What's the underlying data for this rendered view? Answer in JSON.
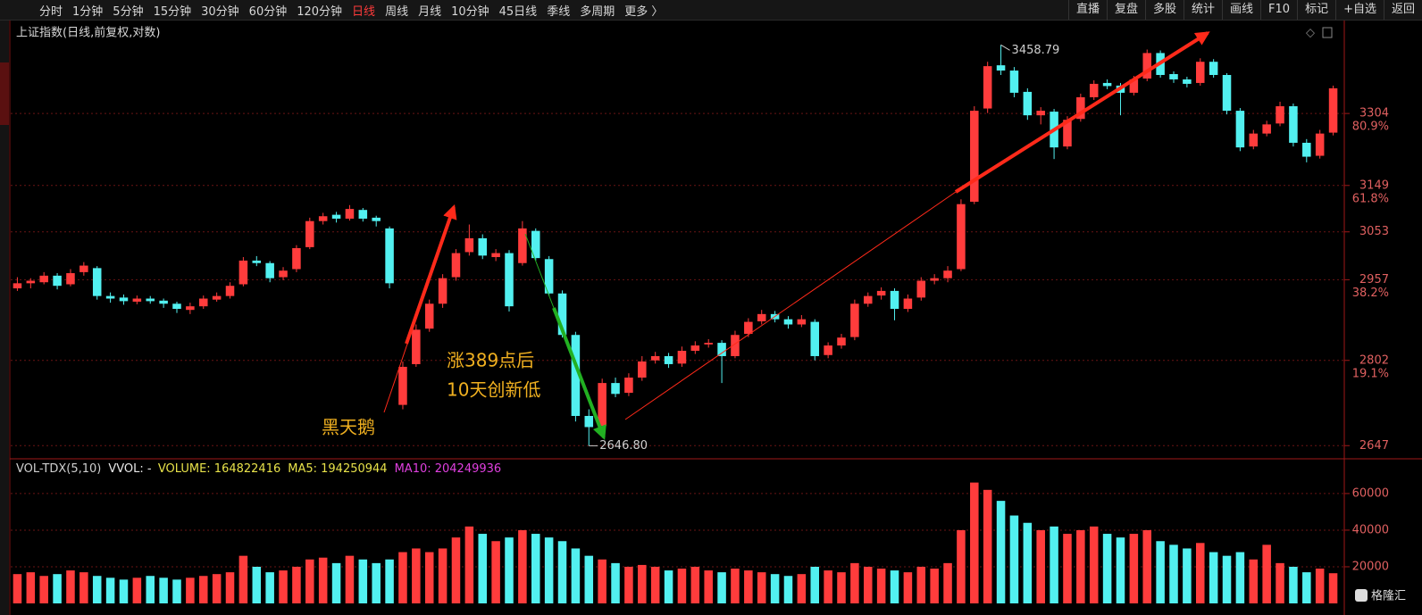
{
  "toolbar": {
    "left": [
      "分时",
      "1分钟",
      "5分钟",
      "15分钟",
      "30分钟",
      "60分钟",
      "120分钟",
      "日线",
      "周线",
      "月线",
      "10分钟",
      "45日线",
      "季线",
      "多周期",
      "更多 〉"
    ],
    "right": [
      "直播",
      "复盘",
      "多股",
      "统计",
      "画线",
      "F10",
      "标记",
      "+自选",
      "返回"
    ],
    "active": "日线"
  },
  "chart_data": {
    "type": "candlestick",
    "title": "上证指数(日线,前复权,对数)",
    "log_scale": true,
    "grid": true,
    "ylim": [
      2627,
      3505
    ],
    "yticks": [
      2647,
      2802,
      2957,
      3053,
      3149,
      3304
    ],
    "fib_labels": [
      {
        "value": 2802,
        "label": "19.1%"
      },
      {
        "value": 2957,
        "label": "38.2%"
      },
      {
        "value": 3149,
        "label": "61.8%"
      },
      {
        "value": 3304,
        "label": "80.9%"
      }
    ],
    "up_color": "#ff3c3c",
    "down_color": "#52f0f0",
    "high_label": "3458.79",
    "low_label": "2646.80",
    "annotations": [
      "黑天鹅",
      "涨389点后",
      "10天创新低"
    ],
    "candles": [
      [
        2940,
        2962,
        2935,
        2950
      ],
      [
        2950,
        2960,
        2940,
        2955
      ],
      [
        2952,
        2972,
        2948,
        2965
      ],
      [
        2965,
        2970,
        2938,
        2945
      ],
      [
        2948,
        2978,
        2944,
        2970
      ],
      [
        2972,
        2992,
        2965,
        2985
      ],
      [
        2980,
        2984,
        2918,
        2925
      ],
      [
        2925,
        2932,
        2912,
        2920
      ],
      [
        2922,
        2928,
        2908,
        2915
      ],
      [
        2914,
        2926,
        2909,
        2920
      ],
      [
        2920,
        2925,
        2910,
        2915
      ],
      [
        2916,
        2920,
        2902,
        2910
      ],
      [
        2910,
        2914,
        2892,
        2900
      ],
      [
        2898,
        2912,
        2890,
        2905
      ],
      [
        2905,
        2926,
        2900,
        2920
      ],
      [
        2918,
        2932,
        2914,
        2925
      ],
      [
        2925,
        2952,
        2920,
        2945
      ],
      [
        2948,
        3002,
        2944,
        2995
      ],
      [
        2995,
        3004,
        2984,
        2990
      ],
      [
        2990,
        2994,
        2952,
        2960
      ],
      [
        2962,
        2982,
        2956,
        2975
      ],
      [
        2978,
        3026,
        2972,
        3020
      ],
      [
        3022,
        3082,
        3018,
        3075
      ],
      [
        3075,
        3092,
        3068,
        3085
      ],
      [
        3088,
        3094,
        3072,
        3080
      ],
      [
        3080,
        3108,
        3076,
        3100
      ],
      [
        3098,
        3102,
        3074,
        3080
      ],
      [
        3082,
        3086,
        3064,
        3075
      ],
      [
        3060,
        3064,
        2940,
        2950
      ],
      [
        2720,
        2800,
        2712,
        2790
      ],
      [
        2795,
        2870,
        2790,
        2860
      ],
      [
        2862,
        2918,
        2856,
        2910
      ],
      [
        2910,
        2968,
        2902,
        2960
      ],
      [
        2962,
        3018,
        2955,
        3010
      ],
      [
        3012,
        3068,
        3005,
        3040
      ],
      [
        3040,
        3048,
        2998,
        3005
      ],
      [
        3002,
        3018,
        2994,
        3010
      ],
      [
        3010,
        3016,
        2895,
        2905
      ],
      [
        2990,
        3075,
        2985,
        3060
      ],
      [
        3055,
        3060,
        2995,
        3000
      ],
      [
        2998,
        3004,
        2925,
        2930
      ],
      [
        2930,
        2936,
        2845,
        2850
      ],
      [
        2850,
        2856,
        2690,
        2700
      ],
      [
        2700,
        2712,
        2646.8,
        2680
      ],
      [
        2682,
        2768,
        2676,
        2760
      ],
      [
        2760,
        2770,
        2734,
        2740
      ],
      [
        2742,
        2778,
        2736,
        2770
      ],
      [
        2770,
        2810,
        2764,
        2800
      ],
      [
        2802,
        2818,
        2796,
        2810
      ],
      [
        2810,
        2816,
        2788,
        2795
      ],
      [
        2796,
        2828,
        2790,
        2820
      ],
      [
        2820,
        2838,
        2814,
        2830
      ],
      [
        2832,
        2842,
        2826,
        2835
      ],
      [
        2835,
        2840,
        2760,
        2810
      ],
      [
        2810,
        2858,
        2806,
        2850
      ],
      [
        2852,
        2882,
        2846,
        2875
      ],
      [
        2876,
        2898,
        2870,
        2890
      ],
      [
        2890,
        2896,
        2874,
        2880
      ],
      [
        2880,
        2886,
        2862,
        2870
      ],
      [
        2870,
        2888,
        2865,
        2880
      ],
      [
        2875,
        2880,
        2802,
        2810
      ],
      [
        2812,
        2836,
        2806,
        2830
      ],
      [
        2830,
        2852,
        2824,
        2845
      ],
      [
        2846,
        2918,
        2840,
        2910
      ],
      [
        2910,
        2932,
        2904,
        2925
      ],
      [
        2926,
        2942,
        2918,
        2935
      ],
      [
        2935,
        2940,
        2878,
        2900
      ],
      [
        2900,
        2928,
        2894,
        2920
      ],
      [
        2922,
        2962,
        2916,
        2955
      ],
      [
        2955,
        2968,
        2948,
        2960
      ],
      [
        2960,
        2984,
        2952,
        2975
      ],
      [
        2978,
        3120,
        2974,
        3110
      ],
      [
        3115,
        3320,
        3110,
        3310
      ],
      [
        3315,
        3420,
        3305,
        3410
      ],
      [
        3412,
        3458.79,
        3390,
        3400
      ],
      [
        3400,
        3408,
        3340,
        3350
      ],
      [
        3352,
        3360,
        3290,
        3300
      ],
      [
        3300,
        3318,
        3280,
        3310
      ],
      [
        3308,
        3314,
        3205,
        3230
      ],
      [
        3232,
        3298,
        3226,
        3290
      ],
      [
        3292,
        3348,
        3286,
        3340
      ],
      [
        3340,
        3378,
        3334,
        3370
      ],
      [
        3372,
        3380,
        3358,
        3365
      ],
      [
        3366,
        3372,
        3300,
        3350
      ],
      [
        3350,
        3388,
        3344,
        3380
      ],
      [
        3382,
        3448,
        3376,
        3440
      ],
      [
        3440,
        3446,
        3384,
        3390
      ],
      [
        3392,
        3398,
        3372,
        3380
      ],
      [
        3380,
        3386,
        3362,
        3370
      ],
      [
        3372,
        3428,
        3366,
        3420
      ],
      [
        3420,
        3426,
        3384,
        3390
      ],
      [
        3390,
        3394,
        3302,
        3310
      ],
      [
        3310,
        3316,
        3222,
        3230
      ],
      [
        3232,
        3268,
        3226,
        3260
      ],
      [
        3260,
        3288,
        3254,
        3280
      ],
      [
        3282,
        3330,
        3276,
        3320
      ],
      [
        3320,
        3326,
        3232,
        3240
      ],
      [
        3240,
        3248,
        3198,
        3210
      ],
      [
        3212,
        3268,
        3206,
        3260
      ],
      [
        3262,
        3366,
        3256,
        3360
      ]
    ],
    "volume": {
      "legend": [
        {
          "text": "VOL-TDX(5,10)",
          "color": "#cfcfcf"
        },
        {
          "text": "VVOL: -",
          "color": "#e8e8e8"
        },
        {
          "text": "VOLUME: 164822416",
          "color": "#e8e24a"
        },
        {
          "text": "MA5: 194250944",
          "color": "#e8e24a"
        },
        {
          "text": "MA10: 204249936",
          "color": "#e040e0"
        }
      ],
      "ylim": [
        0,
        78000
      ],
      "yticks": [
        20000,
        40000,
        60000
      ],
      "values": [
        16000,
        17000,
        15000,
        16000,
        18000,
        17000,
        15000,
        14000,
        13000,
        14000,
        15000,
        14000,
        13000,
        14000,
        15000,
        16000,
        17000,
        26000,
        20000,
        17000,
        18000,
        20000,
        24000,
        25000,
        22000,
        26000,
        24000,
        22000,
        24000,
        28000,
        30000,
        28000,
        30000,
        36000,
        42000,
        38000,
        34000,
        36000,
        40000,
        38000,
        36000,
        34000,
        30000,
        26000,
        24000,
        22000,
        20000,
        21000,
        20000,
        18000,
        19000,
        20000,
        18000,
        17000,
        19000,
        18000,
        17000,
        16000,
        15000,
        16000,
        20000,
        18000,
        17000,
        22000,
        20000,
        19000,
        18000,
        17000,
        20000,
        19000,
        22000,
        40000,
        66000,
        62000,
        56000,
        48000,
        44000,
        40000,
        42000,
        38000,
        40000,
        42000,
        38000,
        36000,
        38000,
        40000,
        34000,
        32000,
        30000,
        33000,
        28000,
        26000,
        28000,
        24000,
        32000,
        22000,
        20000,
        17000,
        19000,
        16482
      ]
    }
  },
  "watermark": "格隆汇"
}
